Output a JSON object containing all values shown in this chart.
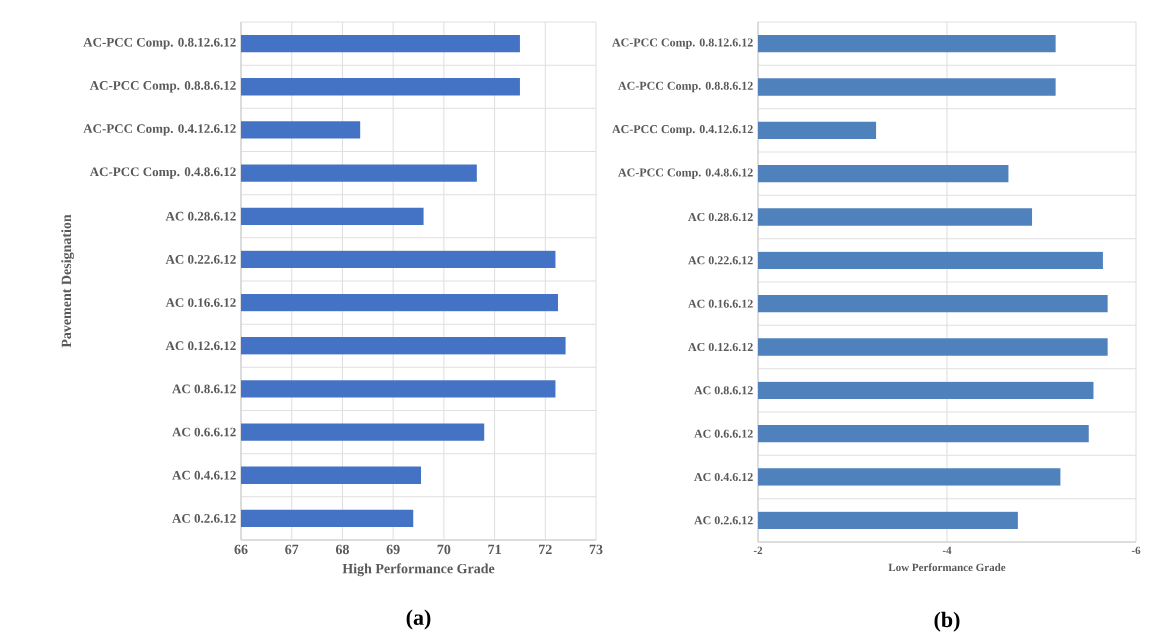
{
  "chart_data": [
    {
      "type": "bar",
      "orientation": "horizontal",
      "xlabel": "High Performance Grade",
      "ylabel": "Pavement Designation",
      "categories": [
        "AC-PCC Comp. 0.8.12.6.12",
        "AC-PCC Comp. 0.8.8.6.12",
        "AC-PCC Comp. 0.4.12.6.12",
        "AC-PCC Comp. 0.4.8.6.12",
        "AC 0.28.6.12",
        "AC 0.22.6.12",
        "AC 0.16.6.12",
        "AC 0.12.6.12",
        "AC 0.8.6.12",
        "AC 0.6.6.12",
        "AC 0.4.6.12",
        "AC 0.2.6.12"
      ],
      "values": [
        71.5,
        71.5,
        68.35,
        70.65,
        69.6,
        72.2,
        72.25,
        72.4,
        72.2,
        70.8,
        69.55,
        69.4
      ],
      "color": "#4472c4",
      "xlim": [
        66,
        73
      ],
      "xticks": [
        66,
        67,
        68,
        69,
        70,
        71,
        72,
        73
      ],
      "grid": true,
      "annotations": [
        "(a)"
      ]
    },
    {
      "type": "bar",
      "orientation": "horizontal",
      "xlabel": "Low Performance Grade",
      "categories": [
        "AC-PCC Comp. 0.8.12.6.12",
        "AC-PCC Comp. 0.8.8.6.12",
        "AC-PCC Comp. 0.4.12.6.12",
        "AC-PCC Comp. 0.4.8.6.12",
        "AC 0.28.6.12",
        "AC 0.22.6.12",
        "AC 0.16.6.12",
        "AC 0.12.6.12",
        "AC 0.8.6.12",
        "AC 0.6.6.12",
        "AC 0.4.6.12",
        "AC 0.2.6.12"
      ],
      "values": [
        -5.15,
        -5.15,
        -3.25,
        -4.65,
        -4.9,
        -5.65,
        -5.7,
        -5.7,
        -5.55,
        -5.5,
        -5.2,
        -4.75
      ],
      "color": "#4f81bd",
      "xlim": [
        -2,
        -6
      ],
      "xticks": [
        -2,
        -4,
        -6
      ],
      "grid": true,
      "annotations": [
        "(b)"
      ]
    }
  ]
}
